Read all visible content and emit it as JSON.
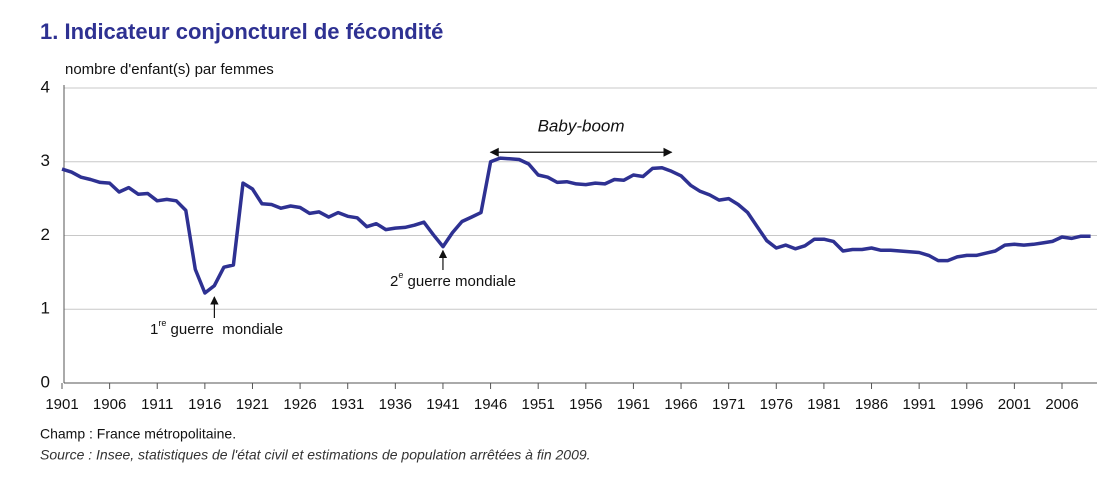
{
  "chart_data": {
    "type": "line",
    "title": "1. Indicateur conjoncturel de fécondité",
    "ylabel": "nombre d'enfant(s) par femmes",
    "x": [
      1901,
      1902,
      1903,
      1904,
      1905,
      1906,
      1907,
      1908,
      1909,
      1910,
      1911,
      1912,
      1913,
      1914,
      1915,
      1916,
      1917,
      1918,
      1919,
      1920,
      1921,
      1922,
      1923,
      1924,
      1925,
      1926,
      1927,
      1928,
      1929,
      1930,
      1931,
      1932,
      1933,
      1934,
      1935,
      1936,
      1937,
      1938,
      1939,
      1940,
      1941,
      1942,
      1943,
      1944,
      1945,
      1946,
      1947,
      1948,
      1949,
      1950,
      1951,
      1952,
      1953,
      1954,
      1955,
      1956,
      1957,
      1958,
      1959,
      1960,
      1961,
      1962,
      1963,
      1964,
      1965,
      1966,
      1967,
      1968,
      1969,
      1970,
      1971,
      1972,
      1973,
      1974,
      1975,
      1976,
      1977,
      1978,
      1979,
      1980,
      1981,
      1982,
      1983,
      1984,
      1985,
      1986,
      1987,
      1988,
      1989,
      1990,
      1991,
      1992,
      1993,
      1994,
      1995,
      1996,
      1997,
      1998,
      1999,
      2000,
      2001,
      2002,
      2003,
      2004,
      2005,
      2006,
      2007,
      2008,
      2009
    ],
    "series": [
      {
        "name": "Indicateur conjoncturel de fécondité",
        "color": "#2e3192",
        "values": [
          2.9,
          2.86,
          2.79,
          2.76,
          2.72,
          2.71,
          2.59,
          2.65,
          2.56,
          2.57,
          2.47,
          2.49,
          2.47,
          2.34,
          1.54,
          1.22,
          1.32,
          1.57,
          1.6,
          2.71,
          2.63,
          2.43,
          2.42,
          2.37,
          2.4,
          2.38,
          2.3,
          2.32,
          2.25,
          2.31,
          2.26,
          2.24,
          2.12,
          2.16,
          2.08,
          2.1,
          2.11,
          2.14,
          2.18,
          2.01,
          1.85,
          2.04,
          2.19,
          2.25,
          2.31,
          3.0,
          3.05,
          3.04,
          3.03,
          2.97,
          2.82,
          2.79,
          2.72,
          2.73,
          2.7,
          2.69,
          2.71,
          2.7,
          2.76,
          2.75,
          2.82,
          2.8,
          2.91,
          2.92,
          2.87,
          2.81,
          2.68,
          2.6,
          2.55,
          2.48,
          2.5,
          2.42,
          2.31,
          2.12,
          1.93,
          1.83,
          1.87,
          1.82,
          1.86,
          1.95,
          1.95,
          1.92,
          1.79,
          1.81,
          1.81,
          1.83,
          1.8,
          1.8,
          1.79,
          1.78,
          1.77,
          1.73,
          1.66,
          1.66,
          1.71,
          1.73,
          1.73,
          1.76,
          1.79,
          1.87,
          1.88,
          1.87,
          1.88,
          1.9,
          1.92,
          1.98,
          1.96,
          1.99,
          1.99
        ]
      }
    ],
    "xlim": [
      1901,
      2010
    ],
    "xticks": [
      1901,
      1906,
      1911,
      1916,
      1921,
      1926,
      1931,
      1936,
      1941,
      1946,
      1951,
      1956,
      1961,
      1966,
      1971,
      1976,
      1981,
      1986,
      1991,
      1996,
      2001,
      2006
    ],
    "ylim": [
      0,
      4
    ],
    "yticks": [
      0,
      1,
      2,
      3,
      4
    ],
    "grid": true,
    "annotations": [
      {
        "text": "Baby-boom",
        "x": [
          1946,
          1965
        ],
        "y": 3.4
      },
      {
        "ordinal": "1",
        "suffix": "re",
        "text": " guerre  mondiale",
        "x": 1917,
        "y": 1.22
      },
      {
        "ordinal": "2",
        "suffix": "e",
        "text": " guerre mondiale",
        "x": 1941,
        "y": 1.85
      }
    ],
    "notes": [
      "Champ : France métropolitaine.",
      "Source : Insee, statistiques de l'état civil et estimations de population arrêtées à fin 2009."
    ]
  }
}
